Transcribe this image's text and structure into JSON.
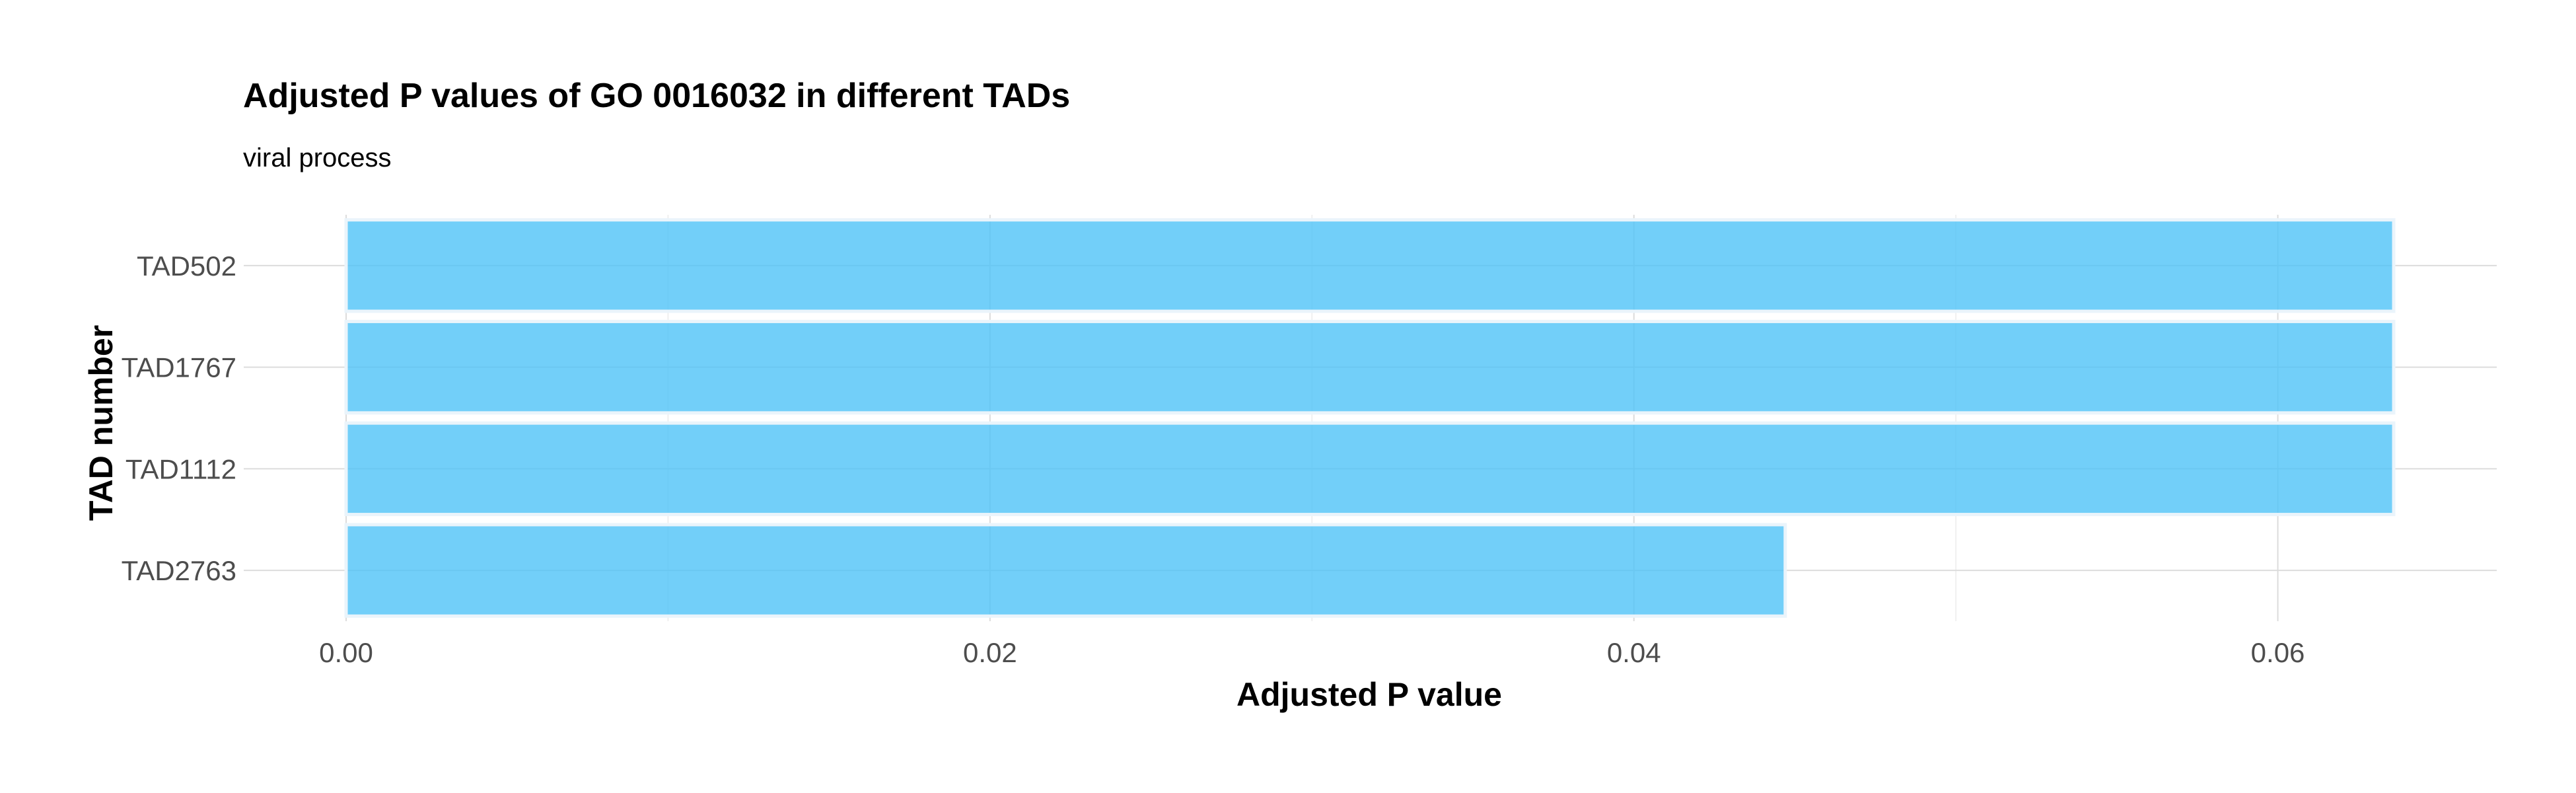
{
  "chart_data": {
    "type": "bar",
    "orientation": "horizontal",
    "title": "Adjusted P values of GO 0016032 in different TADs",
    "subtitle": "viral process",
    "xlabel": "Adjusted P value",
    "ylabel": "TAD number",
    "categories": [
      "TAD502",
      "TAD1767",
      "TAD1112",
      "TAD2763"
    ],
    "values": [
      0.0636,
      0.0636,
      0.0636,
      0.0447
    ],
    "xlim": [
      0,
      0.0668
    ],
    "xticks": [
      0.0,
      0.02,
      0.04,
      0.06
    ],
    "xtick_labels": [
      "0.00",
      "0.02",
      "0.04",
      "0.06"
    ],
    "grid": true,
    "bar_color": "#4fc3f7",
    "bar_edge_color": "#eaf4fb"
  }
}
